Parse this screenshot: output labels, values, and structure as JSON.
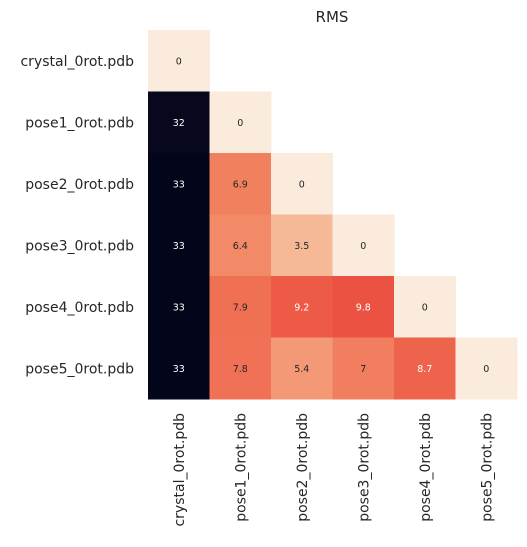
{
  "chart_data": {
    "type": "heatmap",
    "title": "RMS",
    "xlabel": "",
    "ylabel": "",
    "rows": [
      "crystal_0rot.pdb",
      "pose1_0rot.pdb",
      "pose2_0rot.pdb",
      "pose3_0rot.pdb",
      "pose4_0rot.pdb",
      "pose5_0rot.pdb"
    ],
    "columns": [
      "crystal_0rot.pdb",
      "pose1_0rot.pdb",
      "pose2_0rot.pdb",
      "pose3_0rot.pdb",
      "pose4_0rot.pdb",
      "pose5_0rot.pdb"
    ],
    "mask": "upper-triangle",
    "colorbar": false,
    "annotated": true,
    "colormap": "rocket",
    "value_range": [
      0,
      33
    ],
    "cells": [
      [
        {
          "value": 0,
          "label": "0"
        },
        null,
        null,
        null,
        null,
        null
      ],
      [
        {
          "value": 32,
          "label": "32"
        },
        {
          "value": 0,
          "label": "0"
        },
        null,
        null,
        null,
        null
      ],
      [
        {
          "value": 33,
          "label": "33"
        },
        {
          "value": 6.9,
          "label": "6.9"
        },
        {
          "value": 0,
          "label": "0"
        },
        null,
        null,
        null
      ],
      [
        {
          "value": 33,
          "label": "33"
        },
        {
          "value": 6.4,
          "label": "6.4"
        },
        {
          "value": 3.5,
          "label": "3.5"
        },
        {
          "value": 0,
          "label": "0"
        },
        null,
        null
      ],
      [
        {
          "value": 33,
          "label": "33"
        },
        {
          "value": 7.9,
          "label": "7.9"
        },
        {
          "value": 9.2,
          "label": "9.2"
        },
        {
          "value": 9.8,
          "label": "9.8"
        },
        {
          "value": 0,
          "label": "0"
        },
        null
      ],
      [
        {
          "value": 33,
          "label": "33"
        },
        {
          "value": 7.8,
          "label": "7.8"
        },
        {
          "value": 5.4,
          "label": "5.4"
        },
        {
          "value": 7,
          "label": "7"
        },
        {
          "value": 8.7,
          "label": "8.7"
        },
        {
          "value": 0,
          "label": "0"
        }
      ]
    ]
  }
}
